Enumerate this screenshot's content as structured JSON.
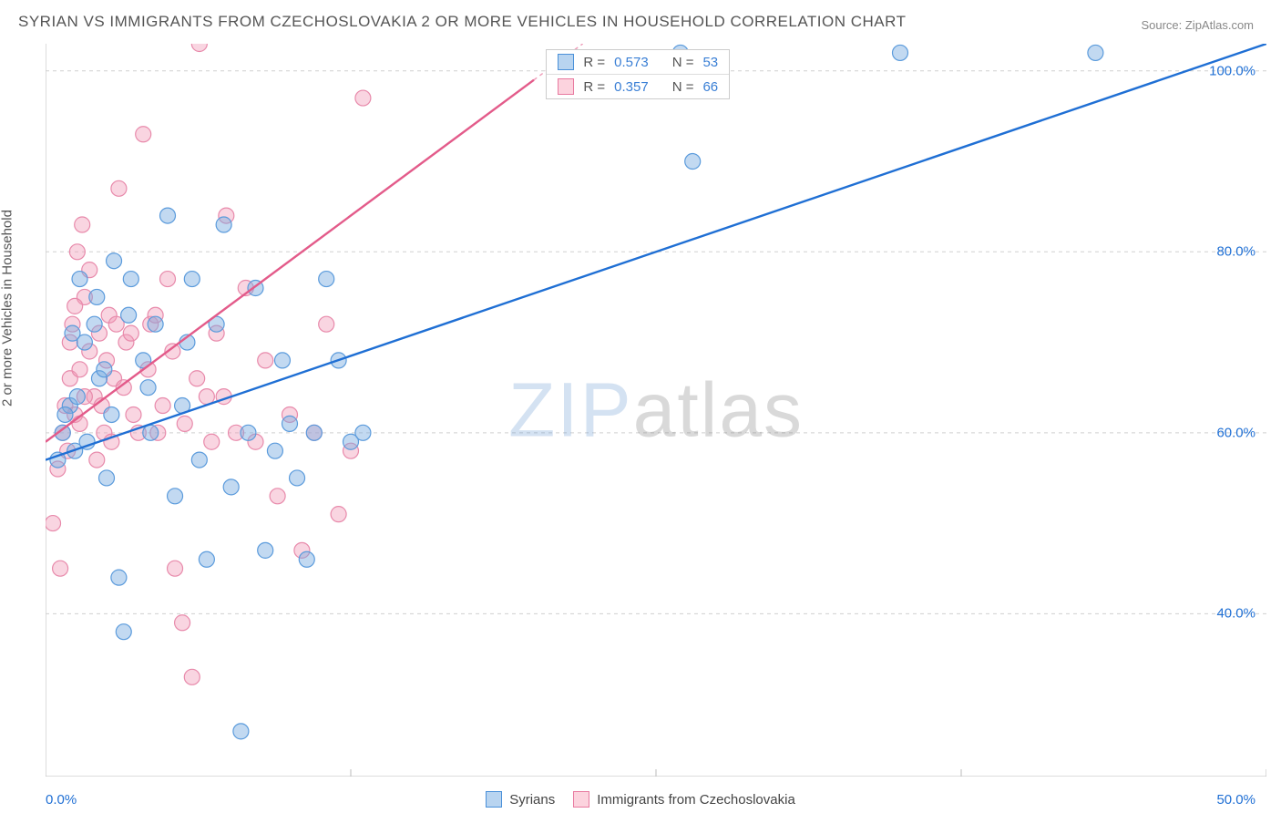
{
  "title": "SYRIAN VS IMMIGRANTS FROM CZECHOSLOVAKIA 2 OR MORE VEHICLES IN HOUSEHOLD CORRELATION CHART",
  "source": "Source: ZipAtlas.com",
  "watermark": {
    "part1": "ZIP",
    "part2": "atlas"
  },
  "y_axis_label": "2 or more Vehicles in Household",
  "x_ticks": {
    "min": "0.0%",
    "max": "50.0%"
  },
  "y_ticks": [
    {
      "label": "40.0%",
      "v": 40
    },
    {
      "label": "60.0%",
      "v": 60
    },
    {
      "label": "80.0%",
      "v": 80
    },
    {
      "label": "100.0%",
      "v": 100
    }
  ],
  "legend": {
    "series1": {
      "label": "Syrians",
      "swatch_fill": "#b8d4f0",
      "swatch_border": "#4a90d9"
    },
    "series2": {
      "label": "Immigrants from Czechoslovakia",
      "swatch_fill": "#fcd3de",
      "swatch_border": "#e87aa0"
    }
  },
  "correlation_box": {
    "rows": [
      {
        "swatch_fill": "#b8d4f0",
        "swatch_border": "#4a90d9",
        "r_label": "R =",
        "r": "0.573",
        "n_label": "N =",
        "n": "53",
        "r_color": "#3a7fd5",
        "n_color": "#3a7fd5"
      },
      {
        "swatch_fill": "#fcd3de",
        "swatch_border": "#e87aa0",
        "r_label": "R =",
        "r": "0.357",
        "n_label": "N =",
        "n": "66",
        "r_color": "#3a7fd5",
        "n_color": "#3a7fd5"
      }
    ]
  },
  "chart": {
    "type": "scatter",
    "xlim": [
      0,
      50
    ],
    "ylim": [
      22,
      103
    ],
    "background_color": "#ffffff",
    "grid_color": "#d0d0d0",
    "grid_dash": "4,4",
    "xgrid": [
      12.5,
      25,
      37.5,
      50
    ],
    "ygrid": [
      40,
      60,
      80,
      100
    ],
    "border_color": "#bbbbbb",
    "series": [
      {
        "name": "Syrians",
        "marker_fill": "rgba(120,170,225,0.45)",
        "marker_stroke": "#5b9bdc",
        "marker_r": 8.5,
        "line_color": "#1f6fd4",
        "line_width": 2.4,
        "regression": {
          "x1": 0,
          "y1": 57,
          "x2": 50,
          "y2": 103
        },
        "points": [
          [
            0.5,
            57
          ],
          [
            0.7,
            60
          ],
          [
            1.0,
            63
          ],
          [
            1.2,
            58
          ],
          [
            1.4,
            77
          ],
          [
            1.6,
            70
          ],
          [
            2.0,
            72
          ],
          [
            2.2,
            66
          ],
          [
            2.5,
            55
          ],
          [
            2.8,
            79
          ],
          [
            3.0,
            44
          ],
          [
            3.2,
            38
          ],
          [
            3.5,
            77
          ],
          [
            4.0,
            68
          ],
          [
            4.3,
            60
          ],
          [
            4.5,
            72
          ],
          [
            5.0,
            84
          ],
          [
            5.3,
            53
          ],
          [
            5.6,
            63
          ],
          [
            6.0,
            77
          ],
          [
            6.3,
            57
          ],
          [
            6.6,
            46
          ],
          [
            7.0,
            72
          ],
          [
            7.3,
            83
          ],
          [
            7.6,
            54
          ],
          [
            8.0,
            27
          ],
          [
            8.3,
            60
          ],
          [
            8.6,
            76
          ],
          [
            9.0,
            47
          ],
          [
            9.4,
            58
          ],
          [
            9.7,
            68
          ],
          [
            10.0,
            61
          ],
          [
            10.3,
            55
          ],
          [
            10.7,
            46
          ],
          [
            11.0,
            60
          ],
          [
            11.5,
            77
          ],
          [
            12.0,
            68
          ],
          [
            12.5,
            59
          ],
          [
            13.0,
            60
          ],
          [
            26.0,
            102
          ],
          [
            26.5,
            90
          ],
          [
            35.0,
            102
          ],
          [
            43.0,
            102
          ],
          [
            0.8,
            62
          ],
          [
            1.1,
            71
          ],
          [
            1.3,
            64
          ],
          [
            1.7,
            59
          ],
          [
            2.1,
            75
          ],
          [
            2.4,
            67
          ],
          [
            2.7,
            62
          ],
          [
            3.4,
            73
          ],
          [
            4.2,
            65
          ],
          [
            5.8,
            70
          ]
        ]
      },
      {
        "name": "Immigrants from Czechoslovakia",
        "marker_fill": "rgba(240,150,180,0.40)",
        "marker_stroke": "#e88aab",
        "marker_r": 8.5,
        "line_color": "#e35b8a",
        "line_width": 2.4,
        "regression": {
          "x1": 0,
          "y1": 59,
          "x2": 20,
          "y2": 99
        },
        "regression_dash_after": {
          "x1": 20,
          "y1": 99,
          "x2": 22,
          "y2": 103
        },
        "points": [
          [
            0.3,
            50
          ],
          [
            0.5,
            56
          ],
          [
            0.7,
            60
          ],
          [
            0.8,
            63
          ],
          [
            1.0,
            66
          ],
          [
            1.1,
            72
          ],
          [
            1.3,
            80
          ],
          [
            1.5,
            83
          ],
          [
            0.6,
            45
          ],
          [
            0.9,
            58
          ],
          [
            1.2,
            62
          ],
          [
            1.4,
            67
          ],
          [
            1.6,
            75
          ],
          [
            1.8,
            78
          ],
          [
            2.0,
            64
          ],
          [
            2.2,
            71
          ],
          [
            2.4,
            60
          ],
          [
            2.6,
            73
          ],
          [
            2.8,
            66
          ],
          [
            3.0,
            87
          ],
          [
            3.3,
            70
          ],
          [
            3.6,
            62
          ],
          [
            4.0,
            93
          ],
          [
            4.3,
            72
          ],
          [
            4.6,
            60
          ],
          [
            5.0,
            77
          ],
          [
            5.3,
            45
          ],
          [
            5.6,
            39
          ],
          [
            6.0,
            33
          ],
          [
            6.3,
            103
          ],
          [
            6.6,
            64
          ],
          [
            7.0,
            71
          ],
          [
            7.4,
            84
          ],
          [
            7.8,
            60
          ],
          [
            8.2,
            76
          ],
          [
            8.6,
            59
          ],
          [
            9.0,
            68
          ],
          [
            9.5,
            53
          ],
          [
            10.0,
            62
          ],
          [
            10.5,
            47
          ],
          [
            11.0,
            60
          ],
          [
            11.5,
            72
          ],
          [
            12.0,
            51
          ],
          [
            12.5,
            58
          ],
          [
            13.0,
            97
          ],
          [
            1.0,
            70
          ],
          [
            1.2,
            74
          ],
          [
            1.4,
            61
          ],
          [
            1.6,
            64
          ],
          [
            1.8,
            69
          ],
          [
            2.1,
            57
          ],
          [
            2.3,
            63
          ],
          [
            2.5,
            68
          ],
          [
            2.7,
            59
          ],
          [
            2.9,
            72
          ],
          [
            3.2,
            65
          ],
          [
            3.5,
            71
          ],
          [
            3.8,
            60
          ],
          [
            4.2,
            67
          ],
          [
            4.5,
            73
          ],
          [
            4.8,
            63
          ],
          [
            5.2,
            69
          ],
          [
            5.7,
            61
          ],
          [
            6.2,
            66
          ],
          [
            6.8,
            59
          ],
          [
            7.3,
            64
          ]
        ]
      }
    ]
  }
}
